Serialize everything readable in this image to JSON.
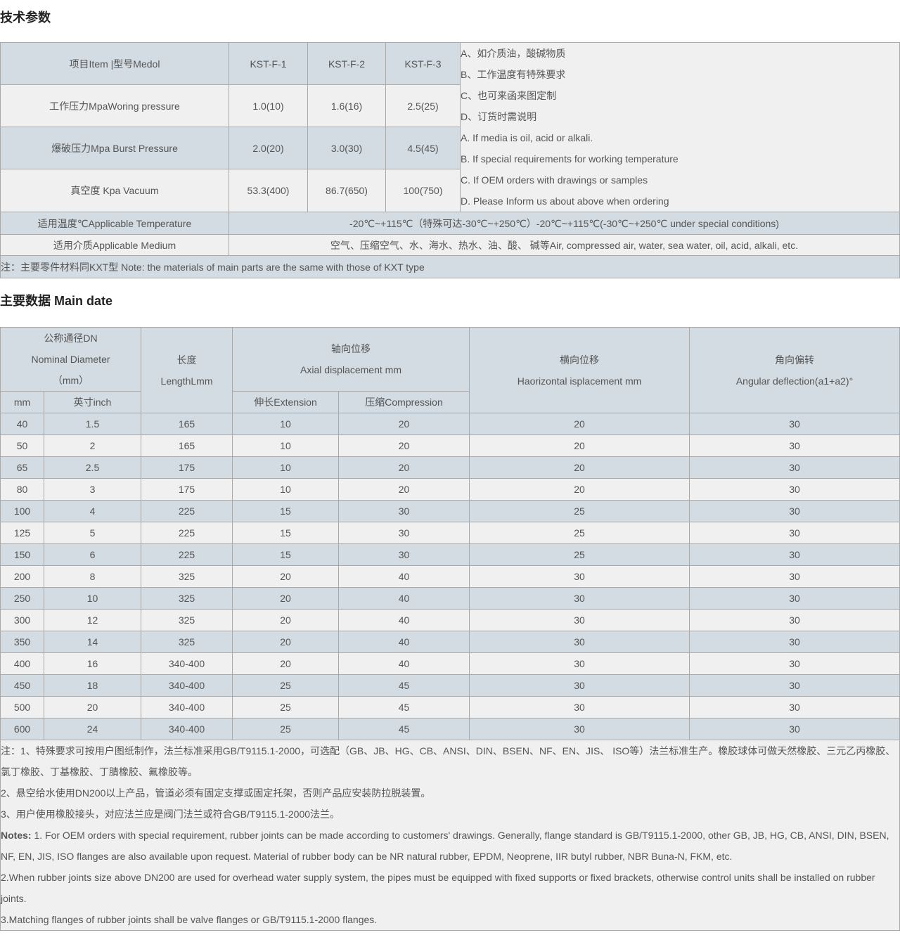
{
  "section1_title": "技术参数",
  "spec": {
    "header": [
      "项目Item |型号Medol",
      "KST-F-1",
      "KST-F-2",
      "KST-F-3"
    ],
    "rows": [
      [
        "工作压力MpaWoring pressure",
        "1.0(10)",
        "1.6(16)",
        "2.5(25)"
      ],
      [
        "爆破压力Mpa Burst Pressure",
        "2.0(20)",
        "3.0(30)",
        "4.5(45)"
      ],
      [
        "真空度 Kpa Vacuum",
        "53.3(400)",
        "86.7(650)",
        "100(750)"
      ]
    ],
    "side_notes": [
      "A、如介质油，酸碱物质",
      "B、工作温度有特殊要求",
      "C、也可来函来图定制",
      "D、订货时需说明",
      "A. If media is oil, acid or alkali.",
      "B. If special requirements for working temperature",
      "C. If OEM orders with drawings or samples",
      "D. Please Inform us about above when ordering"
    ],
    "temp_label": "适用温度℃Applicable Temperature",
    "temp_value": "-20℃~+115℃（特殊可达-30℃~+250℃）-20℃~+115℃(-30℃~+250℃ under special conditions)",
    "medium_label": "适用介质Applicable Medium",
    "medium_value": "空气、压缩空气、水、海水、热水、油、酸、 碱等Air, compressed air, water, sea water, oil, acid, alkali, etc.",
    "note": "注：主要零件材料同KXT型 Note: the materials of main parts are the same with those of KXT type"
  },
  "section2_title": "主要数据 Main date",
  "main": {
    "h_dn": [
      "公称通径DN",
      "Nominal Diameter",
      "（mm）"
    ],
    "h_len": [
      "长度",
      "LengthLmm"
    ],
    "h_axial": [
      "轴向位移",
      "Axial displacement mm"
    ],
    "h_lat": [
      "横向位移",
      "Haorizontal isplacement mm"
    ],
    "h_ang": [
      "角向偏转",
      "Angular deflection(a1+a2)°"
    ],
    "h_mm": "mm",
    "h_inch": "英寸inch",
    "h_ext": "伸长Extension",
    "h_comp": "压缩Compression",
    "rows": [
      [
        "40",
        "1.5",
        "165",
        "10",
        "20",
        "20",
        "30"
      ],
      [
        "50",
        "2",
        "165",
        "10",
        "20",
        "20",
        "30"
      ],
      [
        "65",
        "2.5",
        "175",
        "10",
        "20",
        "20",
        "30"
      ],
      [
        "80",
        "3",
        "175",
        "10",
        "20",
        "20",
        "30"
      ],
      [
        "100",
        "4",
        "225",
        "15",
        "30",
        "25",
        "30"
      ],
      [
        "125",
        "5",
        "225",
        "15",
        "30",
        "25",
        "30"
      ],
      [
        "150",
        "6",
        "225",
        "15",
        "30",
        "25",
        "30"
      ],
      [
        "200",
        "8",
        "325",
        "20",
        "40",
        "30",
        "30"
      ],
      [
        "250",
        "10",
        "325",
        "20",
        "40",
        "30",
        "30"
      ],
      [
        "300",
        "12",
        "325",
        "20",
        "40",
        "30",
        "30"
      ],
      [
        "350",
        "14",
        "325",
        "20",
        "40",
        "30",
        "30"
      ],
      [
        "400",
        "16",
        "340-400",
        "20",
        "40",
        "30",
        "30"
      ],
      [
        "450",
        "18",
        "340-400",
        "25",
        "45",
        "30",
        "30"
      ],
      [
        "500",
        "20",
        "340-400",
        "25",
        "45",
        "30",
        "30"
      ],
      [
        "600",
        "24",
        "340-400",
        "25",
        "45",
        "30",
        "30"
      ]
    ],
    "notes": [
      "注：1、特殊要求可按用户图纸制作，法兰标准采用GB/T9115.1-2000，可选配（GB、JB、HG、CB、ANSI、DIN、BSEN、NF、EN、JIS、 ISO等）法兰标准生产。橡胶球体可做天然橡胶、三元乙丙橡胶、氯丁橡胶、丁基橡胶、丁腈橡胶、氟橡胶等。",
      "2、悬空给水使用DN200以上产品，管道必须有固定支撑或固定托架，否则产品应安装防拉脱装置。",
      "3、用户使用橡胶接头，对应法兰应是阀门法兰或符合GB/T9115.1-2000法兰。"
    ],
    "notes_en_label": "Notes:",
    "notes_en": [
      "1. For OEM orders with special requirement, rubber joints can be made according to customers' drawings. Generally, flange standard is GB/T9115.1-2000, other GB, JB, HG, CB, ANSI, DIN, BSEN, NF, EN, JIS, ISO flanges are also available upon request. Material of rubber body can be NR natural rubber, EPDM, Neoprene, IIR butyl rubber, NBR Buna-N, FKM, etc.",
      "2.When rubber joints size above DN200 are used for overhead water supply system, the pipes must be equipped with fixed supports or fixed brackets, otherwise control units shall be installed on rubber joints.",
      "3.Matching flanges of rubber joints shall be valve flanges or GB/T9115.1-2000 flanges."
    ]
  }
}
